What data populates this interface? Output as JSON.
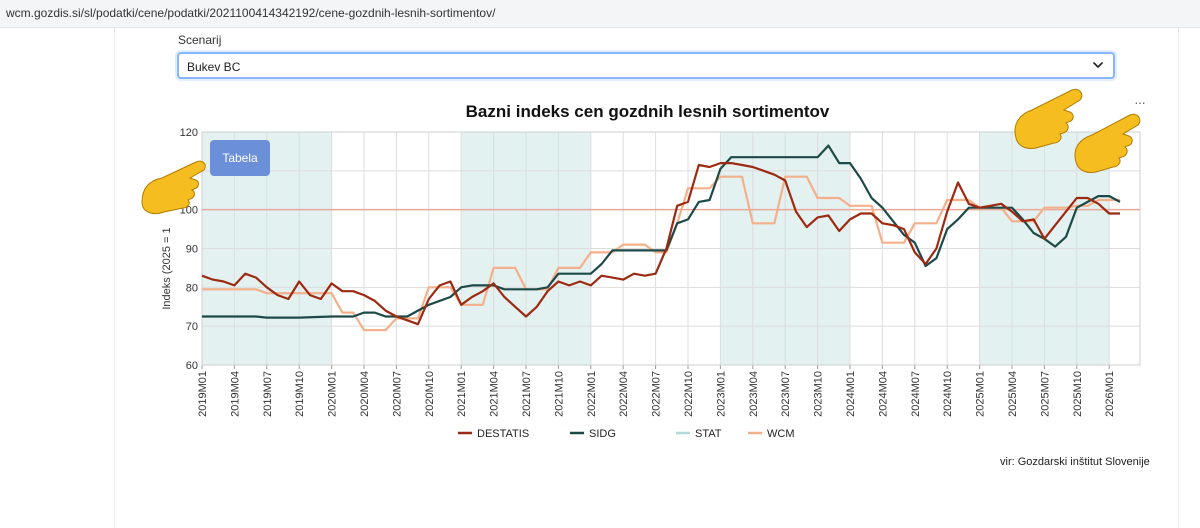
{
  "browser": {
    "url": "wcm.gozdis.si/sl/podatki/cene/podatki/2021100414342192/cene-gozdnih-lesnih-sortimentov/"
  },
  "scenario": {
    "label": "Scenarij",
    "value": "Bukev BC"
  },
  "buttons": {
    "tabela": "Tabela"
  },
  "menu": {
    "dots": "···"
  },
  "source": "vir: Gozdarski inštitut Slovenije",
  "colors": {
    "destatis": "#9c2a12",
    "sidg": "#1d4a48",
    "stat": "#b3d9d6",
    "wcm": "#f4b08a",
    "band": "#e3f1f0",
    "reference": "#e8a99b",
    "hand": "#f5bd1f"
  },
  "icons": [
    "chevron-down-icon",
    "pointing-hand-icon"
  ],
  "chart_data": {
    "type": "line",
    "title": "Bazni indeks cen gozdnih lesnih sortimentov",
    "ylabel": "Indeks (2025 = 1",
    "xlabel": "",
    "ylim": [
      60,
      120
    ],
    "yticks": [
      "60",
      "70",
      "80",
      "90",
      "100",
      "110",
      "120"
    ],
    "reference_line": 100,
    "grid": true,
    "legend_position": "bottom",
    "x_tick_labels": [
      "2019M01",
      "2019M04",
      "2019M07",
      "2019M10",
      "2020M01",
      "2020M04",
      "2020M07",
      "2020M10",
      "2021M01",
      "2021M04",
      "2021M07",
      "2021M10",
      "2022M01",
      "2022M04",
      "2022M07",
      "2022M10",
      "2023M01",
      "2023M04",
      "2023M07",
      "2023M10",
      "2024M01",
      "2024M04",
      "2024M07",
      "2024M10",
      "2025M01",
      "2025M04",
      "2025M07",
      "2025M10",
      "2026M01"
    ],
    "shaded_periods": [
      [
        "2019M01",
        "2020M01"
      ],
      [
        "2021M01",
        "2022M01"
      ],
      [
        "2023M01",
        "2024M01"
      ],
      [
        "2025M01",
        "2026M01"
      ]
    ],
    "series": [
      {
        "name": "DESTATIS",
        "points": [
          [
            "2019M01",
            83
          ],
          [
            "2019M02",
            82
          ],
          [
            "2019M03",
            81.5
          ],
          [
            "2019M04",
            80.5
          ],
          [
            "2019M05",
            83.5
          ],
          [
            "2019M06",
            82.5
          ],
          [
            "2019M07",
            80
          ],
          [
            "2019M08",
            78
          ],
          [
            "2019M09",
            77
          ],
          [
            "2019M10",
            81.5
          ],
          [
            "2019M11",
            78
          ],
          [
            "2019M12",
            77
          ],
          [
            "2020M01",
            81
          ],
          [
            "2020M02",
            79
          ],
          [
            "2020M03",
            79
          ],
          [
            "2020M04",
            78
          ],
          [
            "2020M05",
            76.5
          ],
          [
            "2020M06",
            74
          ],
          [
            "2020M07",
            72.5
          ],
          [
            "2020M08",
            71.5
          ],
          [
            "2020M09",
            70.5
          ],
          [
            "2020M10",
            77
          ],
          [
            "2020M11",
            80.5
          ],
          [
            "2020M12",
            81.5
          ],
          [
            "2021M01",
            75.5
          ],
          [
            "2021M02",
            77.5
          ],
          [
            "2021M03",
            79
          ],
          [
            "2021M04",
            81
          ],
          [
            "2021M05",
            77.5
          ],
          [
            "2021M06",
            75
          ],
          [
            "2021M07",
            72.5
          ],
          [
            "2021M08",
            75
          ],
          [
            "2021M09",
            79
          ],
          [
            "2021M10",
            81.5
          ],
          [
            "2021M11",
            80.5
          ],
          [
            "2021M12",
            81.5
          ],
          [
            "2022M01",
            80.5
          ],
          [
            "2022M02",
            83
          ],
          [
            "2022M03",
            82.5
          ],
          [
            "2022M04",
            82
          ],
          [
            "2022M05",
            83.5
          ],
          [
            "2022M06",
            83
          ],
          [
            "2022M07",
            83.5
          ],
          [
            "2022M08",
            90
          ],
          [
            "2022M09",
            101
          ],
          [
            "2022M10",
            102
          ],
          [
            "2022M11",
            111.5
          ],
          [
            "2022M12",
            111
          ],
          [
            "2023M01",
            112
          ],
          [
            "2023M02",
            112
          ],
          [
            "2023M03",
            111.5
          ],
          [
            "2023M04",
            111
          ],
          [
            "2023M05",
            110
          ],
          [
            "2023M06",
            109
          ],
          [
            "2023M07",
            107.5
          ],
          [
            "2023M08",
            99.5
          ],
          [
            "2023M09",
            95.5
          ],
          [
            "2023M10",
            98
          ],
          [
            "2023M11",
            98.5
          ],
          [
            "2023M12",
            94.5
          ],
          [
            "2024M01",
            97.5
          ],
          [
            "2024M02",
            99
          ],
          [
            "2024M03",
            99
          ],
          [
            "2024M04",
            96.5
          ],
          [
            "2024M05",
            96
          ],
          [
            "2024M06",
            95
          ],
          [
            "2024M07",
            89
          ],
          [
            "2024M08",
            86
          ],
          [
            "2024M09",
            90
          ],
          [
            "2024M10",
            99.5
          ],
          [
            "2024M11",
            107
          ],
          [
            "2024M12",
            101.5
          ],
          [
            "2025M01",
            100.5
          ],
          [
            "2025M02",
            101
          ],
          [
            "2025M03",
            101.5
          ],
          [
            "2025M04",
            99.5
          ],
          [
            "2025M05",
            97
          ],
          [
            "2025M06",
            97.5
          ],
          [
            "2025M07",
            92.5
          ],
          [
            "2025M08",
            96
          ],
          [
            "2025M09",
            99.5
          ],
          [
            "2025M10",
            103
          ],
          [
            "2025M11",
            103
          ],
          [
            "2025M12",
            101.5
          ],
          [
            "2026M01",
            99
          ],
          [
            "2026M02",
            99
          ]
        ]
      },
      {
        "name": "SIDG",
        "points": [
          [
            "2019M01",
            72.5
          ],
          [
            "2019M04",
            72.5
          ],
          [
            "2019M06",
            72.5
          ],
          [
            "2019M07",
            72.2
          ],
          [
            "2019M10",
            72.2
          ],
          [
            "2020M01",
            72.5
          ],
          [
            "2020M03",
            72.5
          ],
          [
            "2020M04",
            73.5
          ],
          [
            "2020M05",
            73.5
          ],
          [
            "2020M06",
            72.5
          ],
          [
            "2020M08",
            72.5
          ],
          [
            "2020M09",
            74
          ],
          [
            "2020M10",
            75.5
          ],
          [
            "2020M12",
            77.5
          ],
          [
            "2021M01",
            80
          ],
          [
            "2021M02",
            80.5
          ],
          [
            "2021M04",
            80.5
          ],
          [
            "2021M05",
            79.5
          ],
          [
            "2021M08",
            79.5
          ],
          [
            "2021M09",
            80
          ],
          [
            "2021M10",
            83.5
          ],
          [
            "2021M12",
            83.5
          ],
          [
            "2022M01",
            83.5
          ],
          [
            "2022M02",
            86
          ],
          [
            "2022M03",
            89.5
          ],
          [
            "2022M06",
            89.5
          ],
          [
            "2022M07",
            89.5
          ],
          [
            "2022M08",
            89.5
          ],
          [
            "2022M09",
            96.5
          ],
          [
            "2022M10",
            97.5
          ],
          [
            "2022M11",
            102
          ],
          [
            "2022M12",
            102.5
          ],
          [
            "2023M01",
            110.5
          ],
          [
            "2023M02",
            113.5
          ],
          [
            "2023M03",
            113.5
          ],
          [
            "2023M10",
            113.5
          ],
          [
            "2023M11",
            116.5
          ],
          [
            "2023M12",
            112
          ],
          [
            "2024M01",
            112
          ],
          [
            "2024M02",
            108
          ],
          [
            "2024M03",
            103
          ],
          [
            "2024M04",
            100.5
          ],
          [
            "2024M05",
            97
          ],
          [
            "2024M06",
            93.5
          ],
          [
            "2024M07",
            91.5
          ],
          [
            "2024M08",
            85.5
          ],
          [
            "2024M09",
            87.5
          ],
          [
            "2024M10",
            95
          ],
          [
            "2024M11",
            97.5
          ],
          [
            "2024M12",
            100.5
          ],
          [
            "2025M01",
            100.5
          ],
          [
            "2025M03",
            100.5
          ],
          [
            "2025M04",
            100.5
          ],
          [
            "2025M05",
            97.5
          ],
          [
            "2025M06",
            94
          ],
          [
            "2025M07",
            92.5
          ],
          [
            "2025M08",
            90.5
          ],
          [
            "2025M09",
            93
          ],
          [
            "2025M10",
            100.5
          ],
          [
            "2025M11",
            102
          ],
          [
            "2025M12",
            103.5
          ],
          [
            "2026M01",
            103.5
          ],
          [
            "2026M02",
            102
          ]
        ]
      },
      {
        "name": "STAT",
        "points": []
      },
      {
        "name": "WCM",
        "points": [
          [
            "2019M01",
            79.5
          ],
          [
            "2019M06",
            79.5
          ],
          [
            "2019M07",
            78.5
          ],
          [
            "2019M12",
            78.5
          ],
          [
            "2020M01",
            78.5
          ],
          [
            "2020M02",
            73.5
          ],
          [
            "2020M03",
            73.5
          ],
          [
            "2020M04",
            69
          ],
          [
            "2020M06",
            69
          ],
          [
            "2020M07",
            72
          ],
          [
            "2020M09",
            72
          ],
          [
            "2020M10",
            80
          ],
          [
            "2020M12",
            80
          ],
          [
            "2021M01",
            75.5
          ],
          [
            "2021M03",
            75.5
          ],
          [
            "2021M04",
            85
          ],
          [
            "2021M06",
            85
          ],
          [
            "2021M07",
            79.5
          ],
          [
            "2021M09",
            79.5
          ],
          [
            "2021M10",
            85
          ],
          [
            "2021M12",
            85
          ],
          [
            "2022M01",
            89
          ],
          [
            "2022M03",
            89
          ],
          [
            "2022M04",
            91
          ],
          [
            "2022M06",
            91
          ],
          [
            "2022M07",
            89
          ],
          [
            "2022M08",
            89
          ],
          [
            "2022M09",
            96.5
          ],
          [
            "2022M10",
            105.5
          ],
          [
            "2022M12",
            105.5
          ],
          [
            "2023M01",
            108.5
          ],
          [
            "2023M03",
            108.5
          ],
          [
            "2023M04",
            96.5
          ],
          [
            "2023M06",
            96.5
          ],
          [
            "2023M07",
            108.5
          ],
          [
            "2023M09",
            108.5
          ],
          [
            "2023M10",
            103
          ],
          [
            "2023M12",
            103
          ],
          [
            "2024M01",
            101
          ],
          [
            "2024M03",
            101
          ],
          [
            "2024M04",
            91.5
          ],
          [
            "2024M06",
            91.5
          ],
          [
            "2024M07",
            96.5
          ],
          [
            "2024M09",
            96.5
          ],
          [
            "2024M10",
            102.5
          ],
          [
            "2024M12",
            102.5
          ],
          [
            "2025M01",
            100.5
          ],
          [
            "2025M03",
            100.5
          ],
          [
            "2025M04",
            97
          ],
          [
            "2025M06",
            97
          ],
          [
            "2025M07",
            100.5
          ],
          [
            "2025M09",
            100.5
          ],
          [
            "2025M10",
            101
          ],
          [
            "2025M11",
            101
          ],
          [
            "2025M12",
            102.5
          ],
          [
            "2026M02",
            102.5
          ]
        ]
      }
    ],
    "source": "vir: Gozdarski inštitut Slovenije"
  }
}
